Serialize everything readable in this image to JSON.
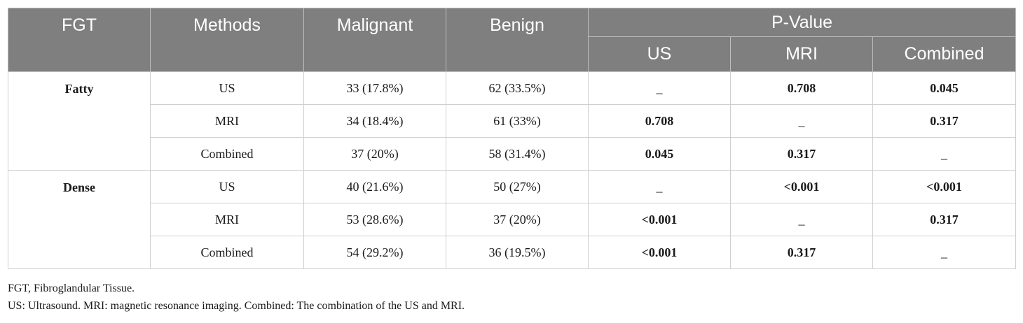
{
  "table": {
    "headers": {
      "fgt": "FGT",
      "methods": "Methods",
      "malignant": "Malignant",
      "benign": "Benign",
      "pvalue": "P-Value",
      "sub": [
        "US",
        "MRI",
        "Combined"
      ]
    },
    "groups": [
      {
        "name": "Fatty",
        "rows": [
          {
            "method": "US",
            "malignant": "33 (17.8%)",
            "benign": "62 (33.5%)",
            "p_us": "_",
            "p_mri": "0.708",
            "p_combined": "0.045"
          },
          {
            "method": "MRI",
            "malignant": "34 (18.4%)",
            "benign": "61 (33%)",
            "p_us": "0.708",
            "p_mri": "_",
            "p_combined": "0.317"
          },
          {
            "method": "Combined",
            "malignant": "37 (20%)",
            "benign": "58 (31.4%)",
            "p_us": "0.045",
            "p_mri": "0.317",
            "p_combined": "_"
          }
        ]
      },
      {
        "name": "Dense",
        "rows": [
          {
            "method": "US",
            "malignant": "40 (21.6%)",
            "benign": "50 (27%)",
            "p_us": "_",
            "p_mri": "<0.001",
            "p_combined": "<0.001"
          },
          {
            "method": "MRI",
            "malignant": "53 (28.6%)",
            "benign": "37 (20%)",
            "p_us": "<0.001",
            "p_mri": "_",
            "p_combined": "0.317"
          },
          {
            "method": "Combined",
            "malignant": "54 (29.2%)",
            "benign": "36 (19.5%)",
            "p_us": "<0.001",
            "p_mri": "0.317",
            "p_combined": "_"
          }
        ]
      }
    ]
  },
  "footnotes": {
    "line1": "FGT, Fibroglandular Tissue.",
    "line2": "US: Ultrasound. MRI: magnetic resonance imaging. Combined: The combination of the US and MRI."
  },
  "colors": {
    "header_bg": "#7f7f7f",
    "header_text": "#ffffff",
    "grid": "#cfcfcf"
  }
}
